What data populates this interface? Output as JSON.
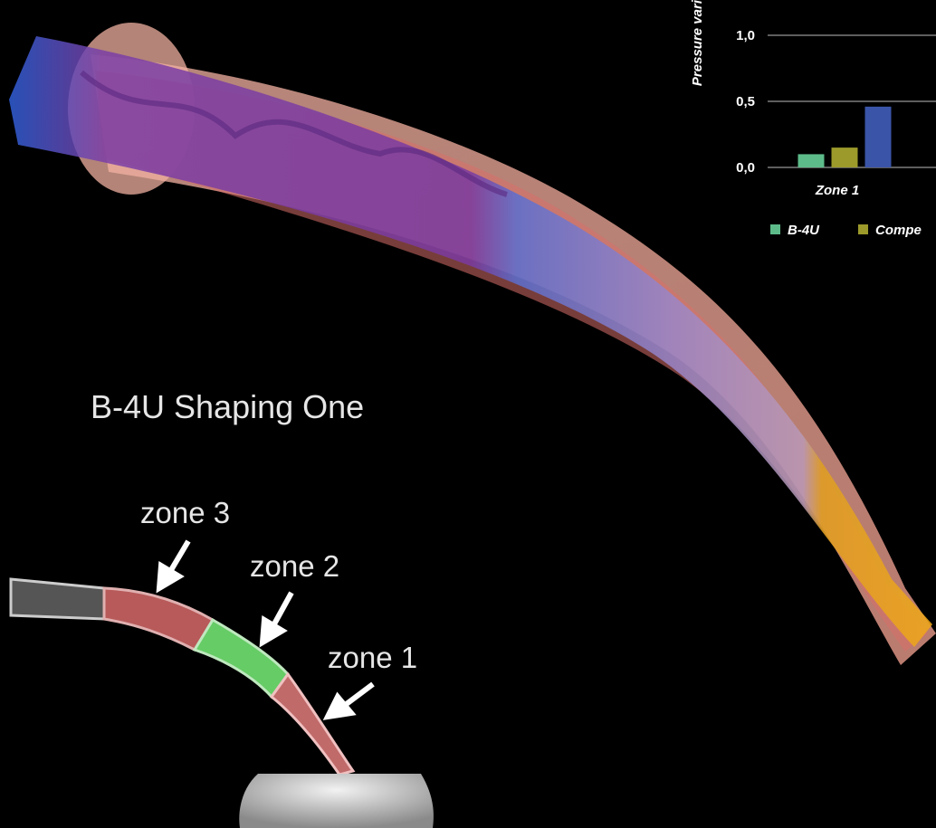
{
  "title": "B-4U Shaping One",
  "annotations": [
    "zone 3",
    "zone 2",
    "zone 1"
  ],
  "chart_data": {
    "type": "bar",
    "y_label": "Pressure vari",
    "categories": [
      "Zone 1"
    ],
    "series": [
      {
        "name": "B-4U",
        "color": "#5dbb8a",
        "values": [
          0.1
        ]
      },
      {
        "name": "Compe",
        "color": "#9c9a2a",
        "values": [
          0.15
        ]
      },
      {
        "color": "#3a55a8",
        "values": [
          0.46
        ]
      }
    ],
    "ylim": [
      0,
      1.2
    ],
    "yticks": [
      {
        "value": 0,
        "label": "0,0"
      },
      {
        "value": 0.5,
        "label": "0,5"
      },
      {
        "value": 1.0,
        "label": "1,0"
      }
    ],
    "grid": true
  }
}
